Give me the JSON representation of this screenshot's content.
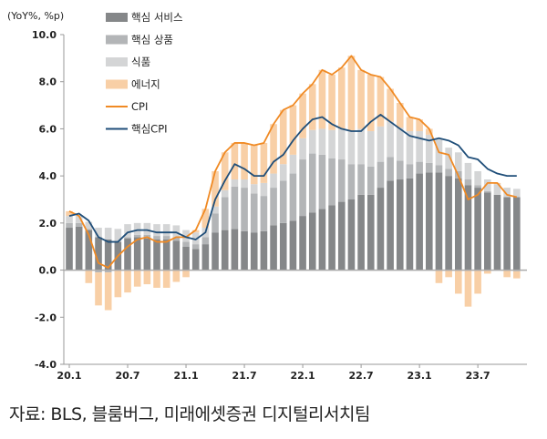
{
  "chart_data": {
    "type": "bar",
    "stacked": true,
    "unit_label": "(YoY%, %p)",
    "ylim": [
      -4,
      10
    ],
    "yticks": [
      "10.0",
      "8.0",
      "6.0",
      "4.0",
      "2.0",
      "0.0",
      "-2.0",
      "-4.0"
    ],
    "ytick_values": [
      10,
      8,
      6,
      4,
      2,
      0,
      -2,
      -4
    ],
    "xtick_labels": [
      "20.1",
      "20.7",
      "21.1",
      "21.7",
      "22.1",
      "22.7",
      "23.1",
      "23.7"
    ],
    "start_month": "2020-01",
    "grid": false,
    "legend_position": "top-left",
    "colors": {
      "core_services": "#858789",
      "core_goods": "#b3b5b7",
      "food": "#d4d5d6",
      "energy": "#f8cfa6",
      "cpi": "#f08a24",
      "core_cpi": "#1f4e79"
    },
    "series": [
      {
        "name": "핵심 서비스",
        "kind": "bar",
        "values": [
          1.8,
          1.85,
          1.7,
          1.4,
          1.3,
          1.2,
          1.35,
          1.4,
          1.35,
          1.3,
          1.3,
          1.25,
          1.0,
          0.9,
          1.1,
          1.6,
          1.7,
          1.75,
          1.65,
          1.6,
          1.65,
          1.9,
          2.0,
          2.1,
          2.3,
          2.45,
          2.6,
          2.75,
          2.9,
          3.0,
          3.2,
          3.2,
          3.5,
          3.8,
          3.85,
          3.9,
          4.1,
          4.15,
          4.15,
          4.0,
          3.9,
          3.6,
          3.5,
          3.3,
          3.2,
          3.1,
          3.1
        ]
      },
      {
        "name": "핵심 상품",
        "kind": "bar",
        "values": [
          0.2,
          0.15,
          0.05,
          -0.1,
          -0.1,
          0.0,
          0.05,
          0.1,
          0.15,
          0.15,
          0.15,
          0.15,
          0.2,
          0.2,
          0.3,
          0.8,
          1.4,
          1.8,
          1.85,
          1.65,
          1.5,
          1.6,
          1.8,
          2.0,
          2.4,
          2.5,
          2.3,
          2.0,
          1.8,
          1.5,
          1.3,
          1.2,
          1.1,
          1.0,
          0.8,
          0.6,
          0.5,
          0.4,
          0.3,
          0.3,
          0.3,
          0.25,
          0.1,
          0.05,
          0.0,
          0.0,
          -0.05
        ]
      },
      {
        "name": "식품",
        "kind": "bar",
        "values": [
          0.3,
          0.3,
          0.3,
          0.4,
          0.5,
          0.55,
          0.55,
          0.5,
          0.5,
          0.5,
          0.5,
          0.5,
          0.5,
          0.5,
          0.4,
          0.3,
          0.3,
          0.3,
          0.35,
          0.4,
          0.55,
          0.6,
          0.7,
          0.8,
          0.9,
          1.0,
          1.1,
          1.2,
          1.3,
          1.4,
          1.5,
          1.5,
          1.5,
          1.5,
          1.4,
          1.4,
          1.3,
          1.2,
          1.1,
          0.9,
          0.8,
          0.7,
          0.6,
          0.5,
          0.45,
          0.4,
          0.35
        ]
      },
      {
        "name": "에너지",
        "kind": "bar",
        "values": [
          0.2,
          0.0,
          -0.55,
          -1.4,
          -1.6,
          -1.15,
          -0.95,
          -0.7,
          -0.6,
          -0.75,
          -0.75,
          -0.5,
          -0.3,
          0.1,
          0.8,
          1.5,
          1.6,
          1.55,
          1.55,
          1.65,
          1.7,
          2.1,
          2.3,
          2.1,
          1.9,
          1.95,
          2.5,
          2.35,
          2.6,
          3.2,
          2.5,
          2.4,
          2.1,
          1.4,
          1.05,
          0.6,
          0.5,
          0.25,
          -0.55,
          -0.3,
          -1.0,
          -1.55,
          -1.0,
          -0.15,
          0.05,
          -0.3,
          -0.3
        ]
      },
      {
        "name": "CPI",
        "kind": "line",
        "values": [
          2.5,
          2.3,
          1.5,
          0.3,
          0.1,
          0.6,
          1.0,
          1.3,
          1.4,
          1.2,
          1.2,
          1.4,
          1.4,
          1.7,
          2.6,
          4.2,
          5.0,
          5.4,
          5.4,
          5.3,
          5.4,
          6.2,
          6.8,
          7.0,
          7.5,
          7.9,
          8.5,
          8.3,
          8.6,
          9.1,
          8.5,
          8.3,
          8.2,
          7.7,
          7.1,
          6.5,
          6.4,
          6.0,
          5.0,
          4.9,
          4.0,
          3.0,
          3.2,
          3.7,
          3.7,
          3.2,
          3.1
        ]
      },
      {
        "name": "핵심CPI",
        "kind": "line",
        "values": [
          2.3,
          2.4,
          2.1,
          1.4,
          1.2,
          1.2,
          1.6,
          1.7,
          1.7,
          1.6,
          1.6,
          1.6,
          1.4,
          1.3,
          1.6,
          3.0,
          3.8,
          4.5,
          4.3,
          4.0,
          4.0,
          4.6,
          4.9,
          5.5,
          6.0,
          6.4,
          6.5,
          6.2,
          6.0,
          5.9,
          5.9,
          6.3,
          6.6,
          6.3,
          6.0,
          5.7,
          5.6,
          5.5,
          5.6,
          5.5,
          5.3,
          4.8,
          4.7,
          4.3,
          4.1,
          4.0,
          4.0
        ]
      }
    ]
  },
  "source": "자료: BLS, 블룸버그, 미래에셋증권 디지털리서치팀"
}
